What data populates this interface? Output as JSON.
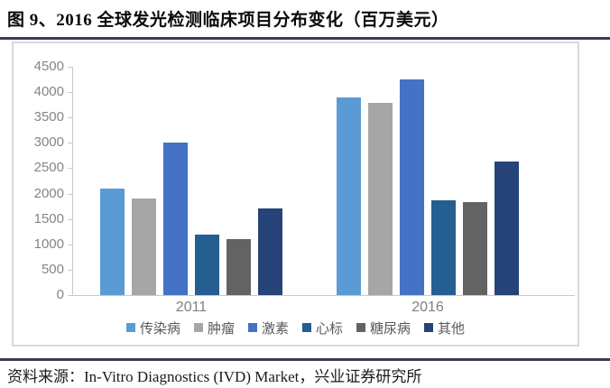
{
  "title": "图 9、2016 全球发光检测临床项目分布变化（百万美元）",
  "source": "资料来源：In-Vitro Diagnostics (IVD) Market，兴业证券研究所",
  "colors": {
    "divider": "#3a3a52",
    "chart_border": "#d9d9d9",
    "axis_line": "#c9c9c9",
    "tick_label_text": "#858585",
    "category_label_text": "#808080",
    "legend_text": "#595959"
  },
  "chart_data": {
    "type": "bar",
    "title": "2016 全球发光检测临床项目分布变化（百万美元）",
    "categories": [
      "2011",
      "2016"
    ],
    "series": [
      {
        "name": "传染病",
        "color": "#5B9BD5",
        "values": [
          2100,
          3900
        ]
      },
      {
        "name": "肿瘤",
        "color": "#A6A6A6",
        "values": [
          1900,
          3780
        ]
      },
      {
        "name": "激素",
        "color": "#4472C4",
        "values": [
          3000,
          4250
        ]
      },
      {
        "name": "心标",
        "color": "#255E91",
        "values": [
          1200,
          1860
        ]
      },
      {
        "name": "糖尿病",
        "color": "#636363",
        "values": [
          1100,
          1840
        ]
      },
      {
        "name": "其他",
        "color": "#264478",
        "values": [
          1700,
          2640
        ]
      }
    ],
    "xlabel": "",
    "ylabel": "",
    "ylim": [
      0,
      4500
    ],
    "ytick_step": 500,
    "grid": false,
    "legend_position": "bottom"
  }
}
